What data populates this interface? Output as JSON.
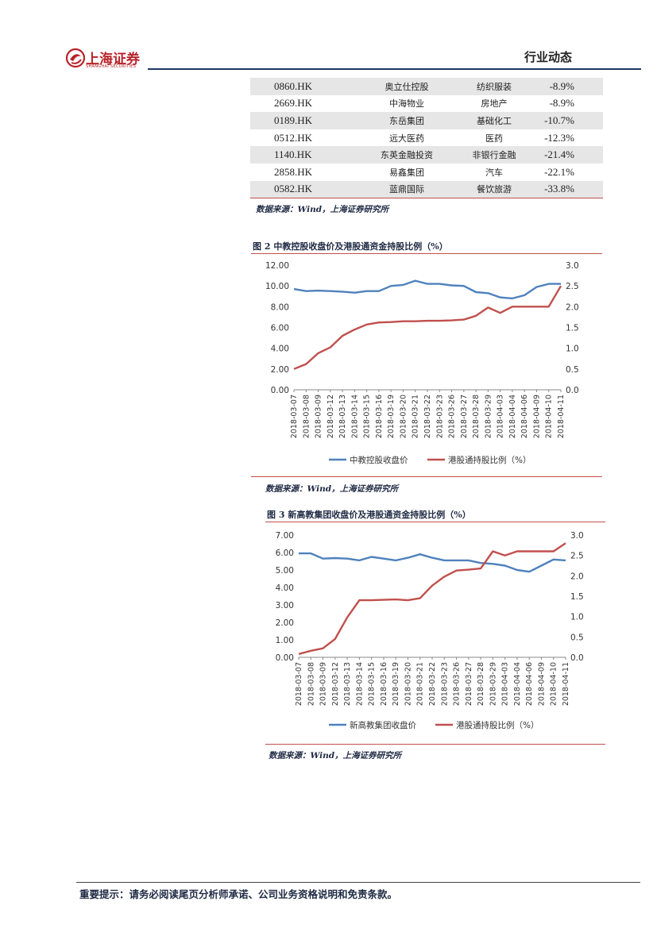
{
  "header": {
    "logo_cn": "上海证券",
    "logo_en": "SHANGHAI SECURITIES",
    "section": "行业动态"
  },
  "stock_table": {
    "rows": [
      {
        "code": "0860.HK",
        "name": "奥立仕控股",
        "industry": "纺织服装",
        "change": "-8.9%"
      },
      {
        "code": "2669.HK",
        "name": "中海物业",
        "industry": "房地产",
        "change": "-8.9%"
      },
      {
        "code": "0189.HK",
        "name": "东岳集团",
        "industry": "基础化工",
        "change": "-10.7%"
      },
      {
        "code": "0512.HK",
        "name": "远大医药",
        "industry": "医药",
        "change": "-12.3%"
      },
      {
        "code": "1140.HK",
        "name": "东英金融投资",
        "industry": "非银行金融",
        "change": "-21.4%"
      },
      {
        "code": "2858.HK",
        "name": "易鑫集团",
        "industry": "汽车",
        "change": "-22.1%"
      },
      {
        "code": "0582.HK",
        "name": "蓝鼎国际",
        "industry": "餐饮旅游",
        "change": "-33.8%"
      }
    ],
    "source": "数据来源：Wind，上海证券研究所"
  },
  "figures": [
    {
      "title": "图 2  中教控股收盘价及港股通资金持股比例（%）",
      "source": "数据来源：Wind，上海证券研究所"
    },
    {
      "title": "图 3  新高教集团收盘价及港股通资金持股比例（%）",
      "source": "数据来源：Wind，上海证券研究所"
    }
  ],
  "chart_data": [
    {
      "type": "line",
      "title": "图 2  中教控股收盘价及港股通资金持股比例（%）",
      "x": [
        "2018-03-07",
        "2018-03-08",
        "2018-03-09",
        "2018-03-12",
        "2018-03-13",
        "2018-03-14",
        "2018-03-15",
        "2018-03-16",
        "2018-03-19",
        "2018-03-20",
        "2018-03-21",
        "2018-03-22",
        "2018-03-23",
        "2018-03-26",
        "2018-03-27",
        "2018-03-28",
        "2018-03-29",
        "2018-04-03",
        "2018-04-04",
        "2018-04-06",
        "2018-04-09",
        "2018-04-10",
        "2018-04-11"
      ],
      "x_tick_labels": [
        "2018-03-07",
        "2018-03-08",
        "2018-03-09",
        "2018-03-12",
        "2018-03-13",
        "2018-03-14",
        "2018-03-15",
        "2018-03-16",
        "2018-03-19",
        "2018-03-20",
        "2018-03-21",
        "2018-03-22",
        "2018-03-23",
        "2018-03-26",
        "2018-03-27",
        "2018-03-28",
        "2018-03-29",
        "2018-04-03",
        "2018-04-04",
        "2018-04-06",
        "2018-04-09",
        "2018-04-10",
        "2018-04-11"
      ],
      "y_left_ticks": [
        "0.00",
        "2.00",
        "4.00",
        "6.00",
        "8.00",
        "10.00",
        "12.00"
      ],
      "y_right_ticks": [
        "0.0",
        "0.5",
        "1.0",
        "1.5",
        "2.0",
        "2.5",
        "3.0"
      ],
      "ylim_left": [
        0,
        12
      ],
      "ylim_right": [
        0,
        3
      ],
      "series": [
        {
          "name": "中教控股收盘价",
          "axis": "left",
          "color": "#4f81bd",
          "values": [
            9.7,
            9.5,
            9.55,
            9.5,
            9.45,
            9.35,
            9.5,
            9.5,
            10.0,
            10.1,
            10.5,
            10.2,
            10.2,
            10.05,
            10.0,
            9.4,
            9.3,
            8.9,
            8.8,
            9.1,
            9.9,
            10.2,
            10.2
          ]
        },
        {
          "name": "港股通持股比例（%）",
          "axis": "right",
          "color": "#c0504d",
          "values": [
            0.5,
            0.62,
            0.88,
            1.02,
            1.3,
            1.45,
            1.57,
            1.62,
            1.63,
            1.65,
            1.65,
            1.66,
            1.66,
            1.67,
            1.69,
            1.78,
            1.98,
            1.85,
            2.0,
            2.0,
            2.0,
            2.0,
            2.5
          ]
        }
      ],
      "legend_position": "bottom"
    },
    {
      "type": "line",
      "title": "图 3  新高教集团收盘价及港股通资金持股比例（%）",
      "x": [
        "2018-03-07",
        "2018-03-08",
        "2018-03-09",
        "2018-03-12",
        "2018-03-13",
        "2018-03-14",
        "2018-03-15",
        "2018-03-16",
        "2018-03-19",
        "2018-03-20",
        "2018-03-21",
        "2018-03-22",
        "2018-03-23",
        "2018-03-26",
        "2018-03-27",
        "2018-03-28",
        "2018-03-29",
        "2018-04-03",
        "2018-04-04",
        "2018-04-06",
        "2018-04-09",
        "2018-04-10",
        "2018-04-11"
      ],
      "x_tick_labels": [
        "2018-03-07",
        "2018-03-08",
        "2018-03-09",
        "2018-03-12",
        "2018-03-13",
        "2018-03-14",
        "2018-03-15",
        "2018-03-16",
        "2018-03-19",
        "2018-03-20",
        "2018-03-21",
        "2018-03-22",
        "2018-03-23",
        "2018-03-26",
        "2018-03-27",
        "2018-03-28",
        "2018-03-29",
        "2018-04-03",
        "2018-04-04",
        "2018-04-06",
        "2018-04-09",
        "2018-04-10",
        "2018-04-11"
      ],
      "y_left_ticks": [
        "0.00",
        "1.00",
        "2.00",
        "3.00",
        "4.00",
        "5.00",
        "6.00",
        "7.00"
      ],
      "y_right_ticks": [
        "0.0",
        "0.5",
        "1.0",
        "1.5",
        "2.0",
        "2.5",
        "3.0"
      ],
      "ylim_left": [
        0,
        7
      ],
      "ylim_right": [
        0,
        3
      ],
      "series": [
        {
          "name": "新高教集团收盘价",
          "axis": "left",
          "color": "#4f81bd",
          "values": [
            5.95,
            5.95,
            5.65,
            5.68,
            5.65,
            5.55,
            5.75,
            5.65,
            5.55,
            5.7,
            5.9,
            5.7,
            5.55,
            5.55,
            5.55,
            5.4,
            5.35,
            5.25,
            5.0,
            4.9,
            5.25,
            5.6,
            5.55
          ]
        },
        {
          "name": "港股通持股比例（%）",
          "axis": "right",
          "color": "#c0504d",
          "values": [
            0.08,
            0.16,
            0.22,
            0.45,
            0.98,
            1.4,
            1.4,
            1.41,
            1.42,
            1.4,
            1.45,
            1.76,
            1.98,
            2.13,
            2.15,
            2.18,
            2.6,
            2.5,
            2.6,
            2.6,
            2.6,
            2.6,
            2.8
          ]
        }
      ],
      "legend_position": "bottom"
    }
  ],
  "footer": {
    "text": "重要提示：请务必阅读尾页分析师承诺、公司业务资格说明和免责条款。"
  }
}
